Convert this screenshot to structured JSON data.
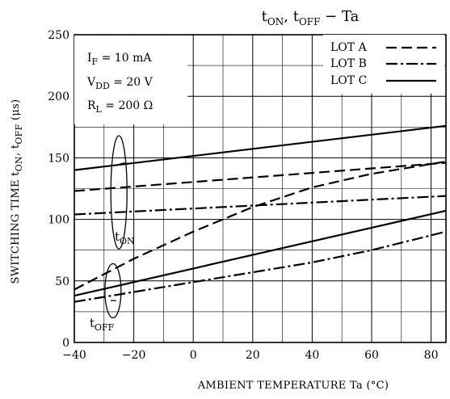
{
  "chart_data": {
    "type": "line",
    "title": "tON, tOFF − Ta",
    "title_parts": {
      "t1": "t",
      "s1": "ON",
      "sep": ", t",
      "s2": "OFF",
      "tail": " − Ta"
    },
    "xlabel": "AMBIENT TEMPERATURE   Ta   (°C)",
    "ylabel": "SWITCHING TIME   tON, tOFF   (μs)",
    "ylabel_parts": {
      "pre": "SWITCHING TIME  t",
      "s1": "ON",
      "mid": ", t",
      "s2": "OFF",
      "unit": "  (μs)"
    },
    "xlim": [
      -40,
      85
    ],
    "ylim": [
      0,
      250
    ],
    "x_ticks": [
      -40,
      -20,
      0,
      20,
      40,
      60,
      80
    ],
    "x_tick_labels": [
      "−40",
      "−20",
      "0",
      "20",
      "40",
      "60",
      "80"
    ],
    "y_ticks": [
      0,
      50,
      100,
      150,
      200,
      250
    ],
    "y_tick_labels": [
      "0",
      "50",
      "100",
      "150",
      "200",
      "250"
    ],
    "grid": true,
    "conditions": [
      {
        "main": "I",
        "sub": "F",
        "rest": " = 10 mA"
      },
      {
        "main": "V",
        "sub": "DD",
        "rest": " = 20 V"
      },
      {
        "main": "R",
        "sub": "L",
        "rest": " = 200 Ω"
      }
    ],
    "legend_position": "top-right",
    "legend": [
      {
        "label": "LOT A",
        "dash": "dashed"
      },
      {
        "label": "LOT B",
        "dash": "dashdot"
      },
      {
        "label": "LOT C",
        "dash": "solid"
      }
    ],
    "group_labels": [
      {
        "main": "t",
        "sub": "ON"
      },
      {
        "main": "t",
        "sub": "OFF"
      }
    ],
    "series": [
      {
        "lot": "A",
        "group": "tON",
        "dash": "dashed",
        "x": [
          -40,
          85
        ],
        "y": [
          123,
          146
        ]
      },
      {
        "lot": "B",
        "group": "tON",
        "dash": "dashdot",
        "x": [
          -40,
          85
        ],
        "y": [
          104,
          119
        ]
      },
      {
        "lot": "C",
        "group": "tON",
        "dash": "solid",
        "x": [
          -40,
          85
        ],
        "y": [
          140,
          176
        ]
      },
      {
        "lot": "A",
        "group": "tOFF",
        "dash": "dashed",
        "x": [
          -40,
          -20,
          0,
          20,
          40,
          60,
          85
        ],
        "y": [
          43,
          68,
          90,
          110,
          126,
          137,
          147
        ]
      },
      {
        "lot": "B",
        "group": "tOFF",
        "dash": "dashdot",
        "x": [
          -40,
          -20,
          0,
          20,
          40,
          60,
          85
        ],
        "y": [
          33,
          41,
          49,
          57,
          65,
          75,
          90
        ]
      },
      {
        "lot": "C",
        "group": "tOFF",
        "dash": "solid",
        "x": [
          -40,
          85
        ],
        "y": [
          38,
          107
        ]
      }
    ]
  }
}
